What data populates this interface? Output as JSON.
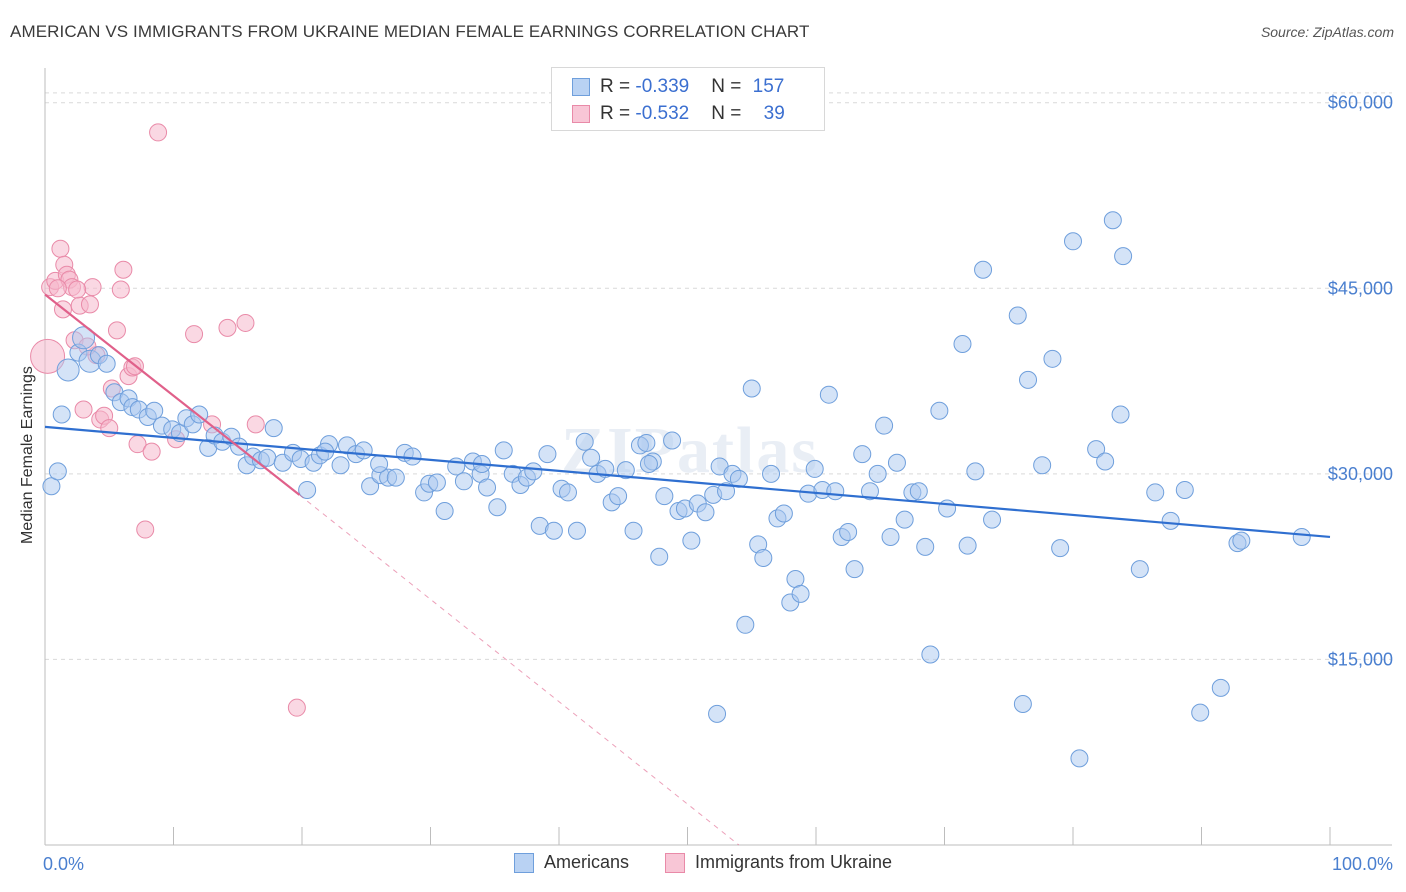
{
  "header": {
    "title": "AMERICAN VS IMMIGRANTS FROM UKRAINE MEDIAN FEMALE EARNINGS CORRELATION CHART",
    "source": "Source: ZipAtlas.com"
  },
  "watermark": "ZIPatlas",
  "colors": {
    "blue_fill": "#a9c8f0",
    "blue_stroke": "#6f9fdc",
    "blue_line": "#2f6fd0",
    "pink_fill": "#f6b8cc",
    "pink_stroke": "#e98aa8",
    "pink_line": "#e0608a",
    "grid": "#d9d9d9",
    "tick": "#4a7fcf"
  },
  "legend": {
    "rows": [
      {
        "r_label": "R = ",
        "r_value": "-0.339",
        "n_label": "N = ",
        "n_value": "157",
        "series": "blue"
      },
      {
        "r_label": "R = ",
        "r_value": "-0.532",
        "n_label": "N = ",
        "n_value": "39",
        "series": "pink"
      }
    ]
  },
  "bottom_legend": {
    "americans": "Americans",
    "ukraine": "Immigrants from Ukraine"
  },
  "chart_data": {
    "type": "scatter",
    "title": "AMERICAN VS IMMIGRANTS FROM UKRAINE MEDIAN FEMALE EARNINGS CORRELATION CHART",
    "xlabel": "",
    "ylabel": "Median Female Earnings",
    "xlim": [
      0,
      100
    ],
    "ylim": [
      0,
      62000
    ],
    "x_tick_labels": [
      "0.0%",
      "100.0%"
    ],
    "y_ticks": [
      15000,
      30000,
      45000,
      60000
    ],
    "y_tick_labels": [
      "$15,000",
      "$30,000",
      "$45,000",
      "$60,000"
    ],
    "grid": true,
    "legend_position": "top-center",
    "series": [
      {
        "name": "Americans",
        "color": "#a9c8f0",
        "r": -0.339,
        "n": 157,
        "trend": {
          "x": [
            0,
            100
          ],
          "y": [
            33800,
            24900
          ]
        },
        "points": [
          [
            0.5,
            29000
          ],
          [
            1.0,
            30200
          ],
          [
            1.3,
            34800
          ],
          [
            1.8,
            38400
          ],
          [
            2.6,
            39800
          ],
          [
            3.0,
            41000
          ],
          [
            3.5,
            39100
          ],
          [
            4.2,
            39600
          ],
          [
            4.8,
            38900
          ],
          [
            5.4,
            36600
          ],
          [
            5.9,
            35800
          ],
          [
            6.5,
            36100
          ],
          [
            6.8,
            35400
          ],
          [
            7.3,
            35200
          ],
          [
            8.0,
            34600
          ],
          [
            8.5,
            35100
          ],
          [
            9.1,
            33900
          ],
          [
            9.9,
            33600
          ],
          [
            10.5,
            33300
          ],
          [
            11.0,
            34500
          ],
          [
            11.5,
            34000
          ],
          [
            12.0,
            34800
          ],
          [
            12.7,
            32100
          ],
          [
            13.2,
            33100
          ],
          [
            13.8,
            32600
          ],
          [
            14.5,
            33000
          ],
          [
            15.1,
            32200
          ],
          [
            15.7,
            30700
          ],
          [
            16.2,
            31400
          ],
          [
            16.8,
            31100
          ],
          [
            17.3,
            31300
          ],
          [
            17.8,
            33700
          ],
          [
            18.5,
            30900
          ],
          [
            19.3,
            31700
          ],
          [
            19.9,
            31200
          ],
          [
            20.4,
            28700
          ],
          [
            20.9,
            30900
          ],
          [
            21.4,
            31500
          ],
          [
            22.1,
            32400
          ],
          [
            23.0,
            30700
          ],
          [
            23.5,
            32300
          ],
          [
            24.2,
            31600
          ],
          [
            24.8,
            31900
          ],
          [
            25.3,
            29000
          ],
          [
            26.1,
            29900
          ],
          [
            26.7,
            29700
          ],
          [
            27.3,
            29700
          ],
          [
            28.0,
            31700
          ],
          [
            28.6,
            31400
          ],
          [
            29.5,
            28500
          ],
          [
            29.9,
            29200
          ],
          [
            30.5,
            29300
          ],
          [
            31.1,
            27000
          ],
          [
            32.0,
            30600
          ],
          [
            32.6,
            29400
          ],
          [
            33.3,
            31000
          ],
          [
            33.9,
            30000
          ],
          [
            34.4,
            28900
          ],
          [
            35.2,
            27300
          ],
          [
            35.7,
            31900
          ],
          [
            36.4,
            30000
          ],
          [
            37.0,
            29100
          ],
          [
            37.5,
            29700
          ],
          [
            38.0,
            30200
          ],
          [
            38.5,
            25800
          ],
          [
            39.1,
            31600
          ],
          [
            39.6,
            25400
          ],
          [
            40.2,
            28800
          ],
          [
            40.7,
            28500
          ],
          [
            41.4,
            25400
          ],
          [
            42.0,
            32600
          ],
          [
            42.5,
            31300
          ],
          [
            43.0,
            30000
          ],
          [
            43.6,
            30400
          ],
          [
            44.1,
            27700
          ],
          [
            44.6,
            28200
          ],
          [
            45.2,
            30300
          ],
          [
            45.8,
            25400
          ],
          [
            46.3,
            32300
          ],
          [
            46.8,
            32500
          ],
          [
            47.3,
            31000
          ],
          [
            47.8,
            23300
          ],
          [
            48.2,
            28200
          ],
          [
            48.8,
            32700
          ],
          [
            49.3,
            27000
          ],
          [
            49.8,
            27200
          ],
          [
            50.3,
            24600
          ],
          [
            50.8,
            27600
          ],
          [
            51.4,
            26900
          ],
          [
            52.0,
            28300
          ],
          [
            52.5,
            30600
          ],
          [
            53.0,
            28600
          ],
          [
            53.5,
            30000
          ],
          [
            54.0,
            29600
          ],
          [
            54.5,
            17800
          ],
          [
            55.0,
            36900
          ],
          [
            55.5,
            24300
          ],
          [
            55.9,
            23200
          ],
          [
            56.5,
            30000
          ],
          [
            57.0,
            26400
          ],
          [
            57.5,
            26800
          ],
          [
            58.0,
            19600
          ],
          [
            58.4,
            21500
          ],
          [
            58.8,
            20300
          ],
          [
            59.4,
            28400
          ],
          [
            59.9,
            30400
          ],
          [
            60.5,
            28700
          ],
          [
            61.0,
            36400
          ],
          [
            61.5,
            28600
          ],
          [
            62.0,
            24900
          ],
          [
            62.5,
            25300
          ],
          [
            63.0,
            22300
          ],
          [
            63.6,
            31600
          ],
          [
            64.2,
            28600
          ],
          [
            64.8,
            30000
          ],
          [
            65.3,
            33900
          ],
          [
            65.8,
            24900
          ],
          [
            66.3,
            30900
          ],
          [
            66.9,
            26300
          ],
          [
            67.5,
            28500
          ],
          [
            68.0,
            28600
          ],
          [
            68.5,
            24100
          ],
          [
            68.9,
            15400
          ],
          [
            69.6,
            35100
          ],
          [
            70.2,
            27200
          ],
          [
            71.4,
            40500
          ],
          [
            71.8,
            24200
          ],
          [
            72.4,
            30200
          ],
          [
            73.0,
            46500
          ],
          [
            73.7,
            26300
          ],
          [
            75.7,
            42800
          ],
          [
            76.1,
            11400
          ],
          [
            76.5,
            37600
          ],
          [
            77.6,
            30700
          ],
          [
            78.4,
            39300
          ],
          [
            79.0,
            24000
          ],
          [
            80.0,
            48800
          ],
          [
            80.5,
            7000
          ],
          [
            81.8,
            32000
          ],
          [
            82.5,
            31000
          ],
          [
            83.1,
            50500
          ],
          [
            83.7,
            34800
          ],
          [
            83.9,
            47600
          ],
          [
            85.2,
            22300
          ],
          [
            86.4,
            28500
          ],
          [
            87.6,
            26200
          ],
          [
            88.7,
            28700
          ],
          [
            89.9,
            10700
          ],
          [
            91.5,
            12700
          ],
          [
            92.8,
            24400
          ],
          [
            93.1,
            24600
          ],
          [
            97.8,
            24900
          ],
          [
            52.3,
            10600
          ],
          [
            47.0,
            30800
          ],
          [
            26.0,
            30800
          ],
          [
            21.8,
            31800
          ],
          [
            34.0,
            30800
          ]
        ]
      },
      {
        "name": "Immigrants from Ukraine",
        "color": "#f6b8cc",
        "r": -0.532,
        "n": 39,
        "trend": {
          "x": [
            0,
            19.8
          ],
          "y": [
            44500,
            28300
          ]
        },
        "trend_extension": {
          "x": [
            19.8,
            54.0
          ],
          "y": [
            28300,
            0
          ]
        },
        "points": [
          [
            0.2,
            39500
          ],
          [
            0.4,
            45100
          ],
          [
            0.8,
            45600
          ],
          [
            1.2,
            48200
          ],
          [
            1.4,
            43300
          ],
          [
            1.5,
            46900
          ],
          [
            1.7,
            46100
          ],
          [
            1.9,
            45700
          ],
          [
            2.1,
            45100
          ],
          [
            2.3,
            40800
          ],
          [
            2.7,
            43600
          ],
          [
            3.0,
            35200
          ],
          [
            3.5,
            43700
          ],
          [
            3.7,
            45100
          ],
          [
            4.0,
            39600
          ],
          [
            4.3,
            34400
          ],
          [
            4.6,
            34700
          ],
          [
            5.0,
            33700
          ],
          [
            5.2,
            36900
          ],
          [
            5.6,
            41600
          ],
          [
            5.9,
            44900
          ],
          [
            6.1,
            46500
          ],
          [
            6.5,
            37900
          ],
          [
            6.8,
            38600
          ],
          [
            7.0,
            38700
          ],
          [
            7.2,
            32400
          ],
          [
            7.8,
            25500
          ],
          [
            8.3,
            31800
          ],
          [
            8.8,
            57600
          ],
          [
            10.2,
            32800
          ],
          [
            11.6,
            41300
          ],
          [
            13.0,
            34000
          ],
          [
            14.2,
            41800
          ],
          [
            15.6,
            42200
          ],
          [
            16.4,
            34000
          ],
          [
            19.6,
            11100
          ],
          [
            1.0,
            45000
          ],
          [
            3.3,
            40300
          ],
          [
            2.5,
            44900
          ]
        ]
      }
    ]
  }
}
